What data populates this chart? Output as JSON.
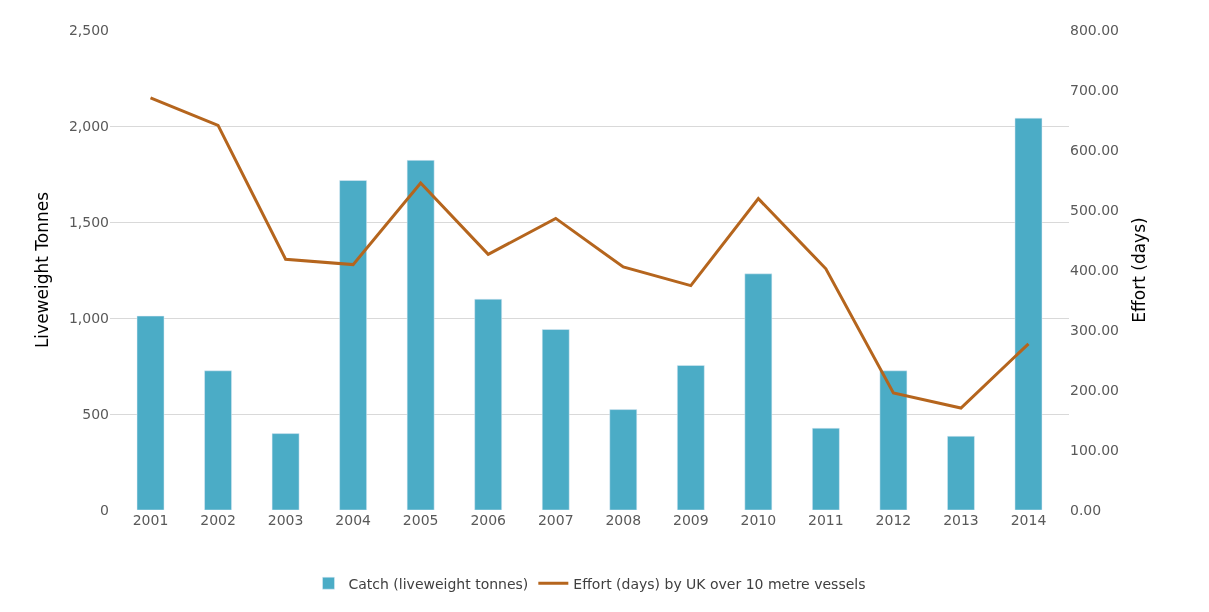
{
  "chart_data": {
    "type": "bar",
    "categories": [
      "2001",
      "2002",
      "2003",
      "2004",
      "2005",
      "2006",
      "2007",
      "2008",
      "2009",
      "2010",
      "2011",
      "2012",
      "2013",
      "2014"
    ],
    "ylabel": "Liveweight Tonnes",
    "y2label": "Effort (days)",
    "series": [
      {
        "name": "Catch (liveweight tonnes)",
        "color": "#4bacc6",
        "values": [
          1010,
          725,
          398,
          1716,
          1821,
          1098,
          940,
          523,
          753,
          1230,
          426,
          725,
          384,
          2041
        ]
      },
      {
        "name": "Effort (days) by UK over 10 metre vessels",
        "type": "line",
        "axis": "y2",
        "color": "#b5651d",
        "values": [
          687,
          641,
          418,
          409,
          545,
          426,
          486,
          405,
          374,
          519,
          402,
          195,
          170,
          277
        ]
      }
    ],
    "ylim": [
      0,
      2500
    ],
    "yticks": [
      {
        "value": 0,
        "label": "0"
      },
      {
        "value": 500,
        "label": "500"
      },
      {
        "value": 1000,
        "label": "1,000"
      },
      {
        "value": 1500,
        "label": "1,500"
      },
      {
        "value": 2000,
        "label": "2,000"
      },
      {
        "value": 2500,
        "label": "2,500"
      }
    ],
    "y2lim": [
      0,
      800
    ],
    "y2ticks": [
      {
        "value": 0,
        "label": "0.00"
      },
      {
        "value": 100,
        "label": "100.00"
      },
      {
        "value": 200,
        "label": "200.00"
      },
      {
        "value": 300,
        "label": "300.00"
      },
      {
        "value": 400,
        "label": "400.00"
      },
      {
        "value": 500,
        "label": "500.00"
      },
      {
        "value": 600,
        "label": "600.00"
      },
      {
        "value": 700,
        "label": "700.00"
      },
      {
        "value": 800,
        "label": "800.00"
      }
    ],
    "grid": "y",
    "legend": "bottom"
  }
}
